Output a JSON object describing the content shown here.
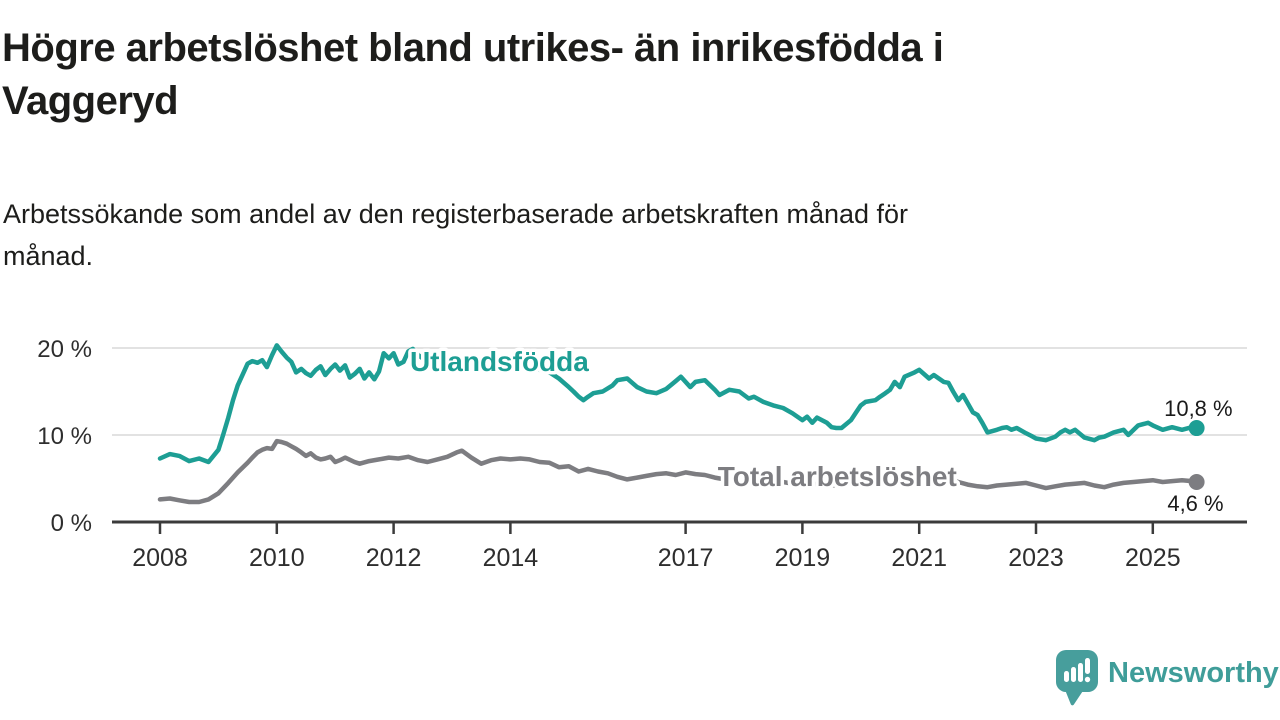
{
  "header": {
    "title_lines": [
      "Högre arbetslöshet bland utrikes- än inrikesfödda i",
      "Vaggeryd"
    ],
    "subtitle_lines": [
      "Arbetssökande som andel av den registerbaserade arbetskraften månad för",
      "månad."
    ]
  },
  "branding": {
    "logo_text": "Newsworthy",
    "logo_color": "#479e9c",
    "logo_text_color": "#3f9d99"
  },
  "colors": {
    "text": "#1d1d1b",
    "axis": "#3b3b3b",
    "grid": "#d9d9d9",
    "tick_label": "#2e2e2e",
    "value_label": "#1a1a1a"
  },
  "chart_data": {
    "type": "line",
    "grid": "horizontal",
    "legend": "inline-labels",
    "x_axis": {
      "range": [
        2007.18,
        2025.92
      ],
      "ticks": [
        {
          "value": 2008,
          "label": "2008"
        },
        {
          "value": 2010,
          "label": "2010"
        },
        {
          "value": 2012,
          "label": "2012"
        },
        {
          "value": 2014,
          "label": "2014"
        },
        {
          "value": 2017,
          "label": "2017"
        },
        {
          "value": 2019,
          "label": "2019"
        },
        {
          "value": 2021,
          "label": "2021"
        },
        {
          "value": 2023,
          "label": "2023"
        },
        {
          "value": 2025,
          "label": "2025"
        }
      ]
    },
    "y_axis": {
      "range": [
        0,
        21
      ],
      "ticks": [
        {
          "value": 0,
          "label": "0 %"
        },
        {
          "value": 10,
          "label": "10 %"
        },
        {
          "value": 20,
          "label": "20 %"
        }
      ]
    },
    "series": [
      {
        "name": "Utlandsfödda",
        "color": "#1d9e94",
        "end_value": 10.8,
        "end_label": "10,8 %",
        "end_label_offset": [
          36,
          -12
        ],
        "label_anchor": {
          "x_year": 2012.28,
          "y_pct": 18.4
        },
        "points": [
          [
            2008.0,
            7.3
          ],
          [
            2008.17,
            7.8
          ],
          [
            2008.33,
            7.6
          ],
          [
            2008.5,
            7.0
          ],
          [
            2008.67,
            7.3
          ],
          [
            2008.83,
            6.9
          ],
          [
            2009.0,
            8.3
          ],
          [
            2009.08,
            10.0
          ],
          [
            2009.17,
            12.0
          ],
          [
            2009.25,
            14.0
          ],
          [
            2009.33,
            15.7
          ],
          [
            2009.42,
            17.0
          ],
          [
            2009.5,
            18.2
          ],
          [
            2009.58,
            18.5
          ],
          [
            2009.67,
            18.3
          ],
          [
            2009.75,
            18.6
          ],
          [
            2009.83,
            17.8
          ],
          [
            2009.92,
            19.2
          ],
          [
            2010.0,
            20.3
          ],
          [
            2010.08,
            19.6
          ],
          [
            2010.17,
            18.9
          ],
          [
            2010.25,
            18.4
          ],
          [
            2010.33,
            17.2
          ],
          [
            2010.42,
            17.6
          ],
          [
            2010.5,
            17.1
          ],
          [
            2010.58,
            16.8
          ],
          [
            2010.67,
            17.5
          ],
          [
            2010.75,
            17.9
          ],
          [
            2010.83,
            16.9
          ],
          [
            2010.92,
            17.6
          ],
          [
            2011.0,
            18.1
          ],
          [
            2011.08,
            17.4
          ],
          [
            2011.17,
            18.0
          ],
          [
            2011.25,
            16.6
          ],
          [
            2011.33,
            17.0
          ],
          [
            2011.42,
            17.6
          ],
          [
            2011.5,
            16.5
          ],
          [
            2011.58,
            17.2
          ],
          [
            2011.67,
            16.4
          ],
          [
            2011.75,
            17.3
          ],
          [
            2011.83,
            19.4
          ],
          [
            2011.92,
            18.8
          ],
          [
            2012.0,
            19.4
          ],
          [
            2012.08,
            18.1
          ],
          [
            2012.17,
            18.4
          ],
          [
            2012.25,
            19.6
          ],
          [
            2012.33,
            19.9
          ],
          [
            2012.42,
            19.2
          ],
          [
            2012.5,
            18.8
          ],
          [
            2012.58,
            19.0
          ],
          [
            2012.67,
            18.5
          ],
          [
            2012.75,
            18.8
          ],
          [
            2012.83,
            18.4
          ],
          [
            2012.92,
            18.6
          ],
          [
            2013.0,
            18.9
          ],
          [
            2013.17,
            18.4
          ],
          [
            2013.33,
            18.7
          ],
          [
            2013.5,
            18.2
          ],
          [
            2013.67,
            18.5
          ],
          [
            2013.83,
            18.0
          ],
          [
            2014.0,
            18.3
          ],
          [
            2014.17,
            17.8
          ],
          [
            2014.33,
            18.1
          ],
          [
            2014.5,
            17.5
          ],
          [
            2014.67,
            17.2
          ],
          [
            2014.83,
            16.5
          ],
          [
            2015.0,
            15.5
          ],
          [
            2015.08,
            15.0
          ],
          [
            2015.17,
            14.4
          ],
          [
            2015.25,
            14.0
          ],
          [
            2015.33,
            14.4
          ],
          [
            2015.42,
            14.8
          ],
          [
            2015.58,
            15.0
          ],
          [
            2015.75,
            15.7
          ],
          [
            2015.83,
            16.3
          ],
          [
            2016.0,
            16.5
          ],
          [
            2016.17,
            15.5
          ],
          [
            2016.33,
            15.0
          ],
          [
            2016.5,
            14.8
          ],
          [
            2016.67,
            15.3
          ],
          [
            2016.83,
            16.2
          ],
          [
            2016.92,
            16.7
          ],
          [
            2017.08,
            15.5
          ],
          [
            2017.17,
            16.1
          ],
          [
            2017.33,
            16.3
          ],
          [
            2017.5,
            15.2
          ],
          [
            2017.58,
            14.6
          ],
          [
            2017.75,
            15.2
          ],
          [
            2017.92,
            15.0
          ],
          [
            2018.08,
            14.2
          ],
          [
            2018.17,
            14.4
          ],
          [
            2018.33,
            13.8
          ],
          [
            2018.5,
            13.4
          ],
          [
            2018.67,
            13.1
          ],
          [
            2018.83,
            12.5
          ],
          [
            2019.0,
            11.7
          ],
          [
            2019.08,
            12.1
          ],
          [
            2019.17,
            11.4
          ],
          [
            2019.25,
            12.0
          ],
          [
            2019.42,
            11.4
          ],
          [
            2019.5,
            10.9
          ],
          [
            2019.58,
            10.8
          ],
          [
            2019.67,
            10.8
          ],
          [
            2019.83,
            11.7
          ],
          [
            2019.92,
            12.6
          ],
          [
            2020.0,
            13.4
          ],
          [
            2020.08,
            13.8
          ],
          [
            2020.25,
            14.0
          ],
          [
            2020.33,
            14.4
          ],
          [
            2020.42,
            14.8
          ],
          [
            2020.5,
            15.2
          ],
          [
            2020.58,
            16.1
          ],
          [
            2020.67,
            15.5
          ],
          [
            2020.75,
            16.7
          ],
          [
            2020.92,
            17.2
          ],
          [
            2021.0,
            17.5
          ],
          [
            2021.17,
            16.5
          ],
          [
            2021.25,
            16.9
          ],
          [
            2021.42,
            16.1
          ],
          [
            2021.5,
            16.0
          ],
          [
            2021.58,
            15.0
          ],
          [
            2021.67,
            14.0
          ],
          [
            2021.75,
            14.6
          ],
          [
            2021.92,
            12.6
          ],
          [
            2022.0,
            12.3
          ],
          [
            2022.08,
            11.4
          ],
          [
            2022.17,
            10.3
          ],
          [
            2022.33,
            10.6
          ],
          [
            2022.42,
            10.8
          ],
          [
            2022.5,
            10.9
          ],
          [
            2022.58,
            10.6
          ],
          [
            2022.67,
            10.8
          ],
          [
            2022.83,
            10.2
          ],
          [
            2022.92,
            9.9
          ],
          [
            2023.0,
            9.6
          ],
          [
            2023.17,
            9.4
          ],
          [
            2023.33,
            9.8
          ],
          [
            2023.42,
            10.3
          ],
          [
            2023.5,
            10.6
          ],
          [
            2023.58,
            10.3
          ],
          [
            2023.67,
            10.6
          ],
          [
            2023.83,
            9.7
          ],
          [
            2024.0,
            9.4
          ],
          [
            2024.08,
            9.7
          ],
          [
            2024.17,
            9.8
          ],
          [
            2024.33,
            10.3
          ],
          [
            2024.5,
            10.6
          ],
          [
            2024.58,
            10.0
          ],
          [
            2024.75,
            11.1
          ],
          [
            2024.92,
            11.4
          ],
          [
            2025.0,
            11.1
          ],
          [
            2025.17,
            10.6
          ],
          [
            2025.33,
            10.9
          ],
          [
            2025.5,
            10.6
          ],
          [
            2025.67,
            10.9
          ],
          [
            2025.75,
            10.8
          ]
        ]
      },
      {
        "name": "Total arbetslöshet",
        "color": "#7d7d81",
        "end_value": 4.6,
        "end_label": "4,6 %",
        "end_label_offset": [
          27,
          29
        ],
        "label_anchor": {
          "x_year": 2017.55,
          "y_pct": 5.2
        },
        "points": [
          [
            2008.0,
            2.6
          ],
          [
            2008.17,
            2.7
          ],
          [
            2008.33,
            2.5
          ],
          [
            2008.5,
            2.3
          ],
          [
            2008.67,
            2.3
          ],
          [
            2008.83,
            2.6
          ],
          [
            2009.0,
            3.3
          ],
          [
            2009.17,
            4.5
          ],
          [
            2009.33,
            5.7
          ],
          [
            2009.5,
            6.8
          ],
          [
            2009.58,
            7.4
          ],
          [
            2009.67,
            8.0
          ],
          [
            2009.75,
            8.3
          ],
          [
            2009.83,
            8.5
          ],
          [
            2009.92,
            8.4
          ],
          [
            2010.0,
            9.3
          ],
          [
            2010.08,
            9.2
          ],
          [
            2010.17,
            9.0
          ],
          [
            2010.25,
            8.7
          ],
          [
            2010.33,
            8.4
          ],
          [
            2010.42,
            8.0
          ],
          [
            2010.5,
            7.6
          ],
          [
            2010.58,
            7.9
          ],
          [
            2010.67,
            7.4
          ],
          [
            2010.75,
            7.2
          ],
          [
            2010.83,
            7.3
          ],
          [
            2010.92,
            7.5
          ],
          [
            2011.0,
            6.9
          ],
          [
            2011.08,
            7.1
          ],
          [
            2011.17,
            7.4
          ],
          [
            2011.33,
            6.9
          ],
          [
            2011.42,
            6.7
          ],
          [
            2011.58,
            7.0
          ],
          [
            2011.75,
            7.2
          ],
          [
            2011.92,
            7.4
          ],
          [
            2012.08,
            7.3
          ],
          [
            2012.25,
            7.5
          ],
          [
            2012.42,
            7.1
          ],
          [
            2012.58,
            6.9
          ],
          [
            2012.75,
            7.2
          ],
          [
            2012.92,
            7.5
          ],
          [
            2013.08,
            8.0
          ],
          [
            2013.17,
            8.2
          ],
          [
            2013.33,
            7.4
          ],
          [
            2013.5,
            6.7
          ],
          [
            2013.67,
            7.1
          ],
          [
            2013.83,
            7.3
          ],
          [
            2014.0,
            7.2
          ],
          [
            2014.17,
            7.3
          ],
          [
            2014.33,
            7.2
          ],
          [
            2014.5,
            6.9
          ],
          [
            2014.67,
            6.8
          ],
          [
            2014.83,
            6.3
          ],
          [
            2015.0,
            6.4
          ],
          [
            2015.17,
            5.8
          ],
          [
            2015.33,
            6.1
          ],
          [
            2015.5,
            5.8
          ],
          [
            2015.67,
            5.6
          ],
          [
            2015.83,
            5.2
          ],
          [
            2016.0,
            4.9
          ],
          [
            2016.17,
            5.1
          ],
          [
            2016.33,
            5.3
          ],
          [
            2016.5,
            5.5
          ],
          [
            2016.67,
            5.6
          ],
          [
            2016.83,
            5.4
          ],
          [
            2017.0,
            5.7
          ],
          [
            2017.17,
            5.5
          ],
          [
            2017.33,
            5.4
          ],
          [
            2017.5,
            5.1
          ],
          [
            2017.67,
            4.9
          ],
          [
            2017.83,
            4.8
          ],
          [
            2018.0,
            4.9
          ],
          [
            2018.17,
            4.7
          ],
          [
            2018.33,
            4.6
          ],
          [
            2018.5,
            4.5
          ],
          [
            2018.67,
            4.6
          ],
          [
            2018.83,
            4.4
          ],
          [
            2019.0,
            4.3
          ],
          [
            2019.17,
            4.4
          ],
          [
            2019.33,
            4.3
          ],
          [
            2019.5,
            4.2
          ],
          [
            2019.67,
            4.3
          ],
          [
            2019.83,
            4.5
          ],
          [
            2020.0,
            4.8
          ],
          [
            2020.17,
            5.3
          ],
          [
            2020.33,
            5.6
          ],
          [
            2020.5,
            5.7
          ],
          [
            2020.67,
            5.5
          ],
          [
            2020.83,
            5.4
          ],
          [
            2021.0,
            5.2
          ],
          [
            2021.17,
            5.1
          ],
          [
            2021.33,
            5.0
          ],
          [
            2021.5,
            4.8
          ],
          [
            2021.67,
            4.6
          ],
          [
            2021.83,
            4.3
          ],
          [
            2022.0,
            4.1
          ],
          [
            2022.17,
            4.0
          ],
          [
            2022.33,
            4.2
          ],
          [
            2022.5,
            4.3
          ],
          [
            2022.67,
            4.4
          ],
          [
            2022.83,
            4.5
          ],
          [
            2023.0,
            4.2
          ],
          [
            2023.17,
            3.9
          ],
          [
            2023.33,
            4.1
          ],
          [
            2023.5,
            4.3
          ],
          [
            2023.67,
            4.4
          ],
          [
            2023.83,
            4.5
          ],
          [
            2024.0,
            4.2
          ],
          [
            2024.17,
            4.0
          ],
          [
            2024.33,
            4.3
          ],
          [
            2024.5,
            4.5
          ],
          [
            2024.67,
            4.6
          ],
          [
            2024.83,
            4.7
          ],
          [
            2025.0,
            4.8
          ],
          [
            2025.17,
            4.6
          ],
          [
            2025.33,
            4.7
          ],
          [
            2025.5,
            4.8
          ],
          [
            2025.67,
            4.7
          ],
          [
            2025.75,
            4.6
          ]
        ]
      }
    ]
  }
}
